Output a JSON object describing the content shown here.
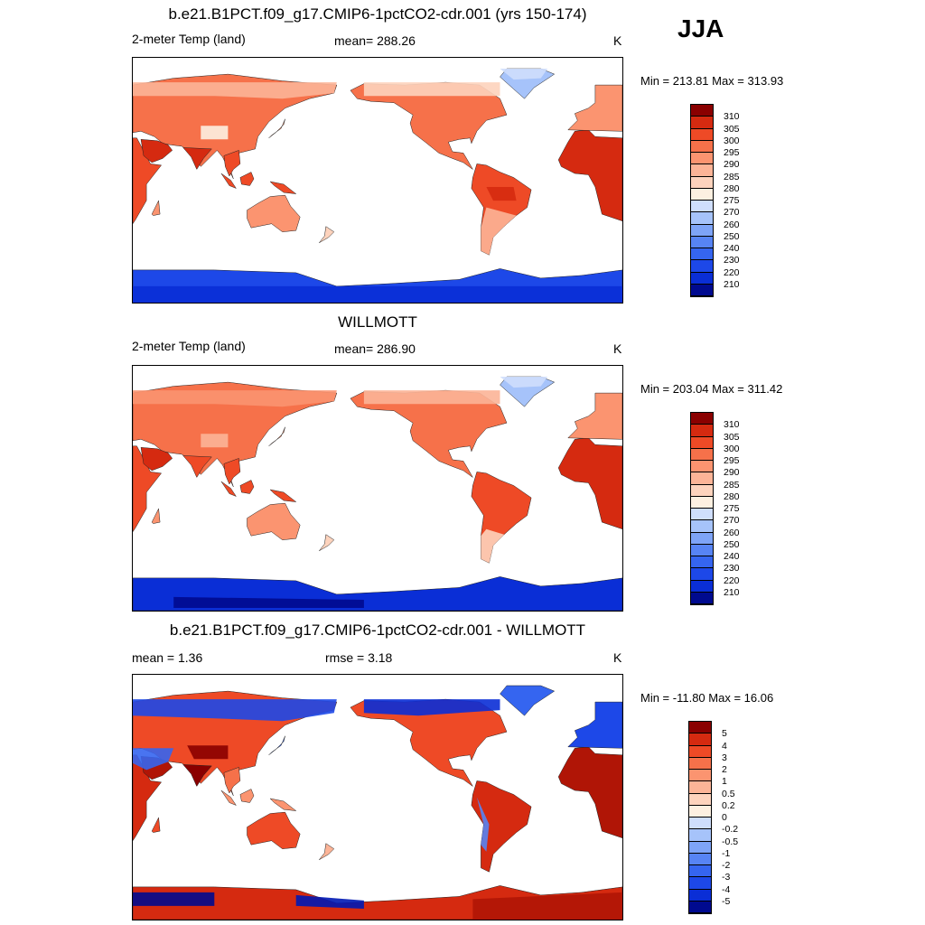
{
  "season": "JJA",
  "color_palettes": {
    "temperature": [
      "#000a8f",
      "#0018b4",
      "#0a2ed6",
      "#1d48e8",
      "#3565f0",
      "#5784f4",
      "#7ea4f7",
      "#a6c3fa",
      "#cfdefc",
      "#fdf0e1",
      "#fdd3bd",
      "#fcb497",
      "#fb9470",
      "#f6714a",
      "#ee4a26",
      "#d52a10",
      "#b01506",
      "#8a0000"
    ],
    "difference": [
      "#000a8f",
      "#0018b4",
      "#0a2ed6",
      "#1d48e8",
      "#3565f0",
      "#5784f4",
      "#7ea4f7",
      "#a6c3fa",
      "#cfdefc",
      "#fdf0e1",
      "#fdd3bd",
      "#fcb497",
      "#fb9470",
      "#f6714a",
      "#ee4a26",
      "#d52a10",
      "#b01506",
      "#8a0000"
    ]
  },
  "panels": [
    {
      "title": "b.e21.B1PCT.f09_g17.CMIP6-1pctCO2-cdr.001 (yrs 150-174)",
      "left_label": "2-meter Temp (land)",
      "center_label": "mean= 288.26",
      "units": "K",
      "range_text": "Min = 213.81 Max = 313.93",
      "colorbar_ticks": [
        "310",
        "305",
        "300",
        "295",
        "290",
        "285",
        "280",
        "275",
        "270",
        "260",
        "250",
        "240",
        "230",
        "220",
        "210"
      ]
    },
    {
      "title": "WILLMOTT",
      "left_label": "2-meter Temp (land)",
      "center_label": "mean= 286.90",
      "units": "K",
      "range_text": "Min = 203.04 Max = 311.42",
      "colorbar_ticks": [
        "310",
        "305",
        "300",
        "295",
        "290",
        "285",
        "280",
        "275",
        "270",
        "260",
        "250",
        "240",
        "230",
        "220",
        "210"
      ]
    },
    {
      "title": "b.e21.B1PCT.f09_g17.CMIP6-1pctCO2-cdr.001 - WILLMOTT",
      "left_label": "mean =   1.36",
      "center_label": "rmse =   3.18",
      "units": "K",
      "range_text": "Min = -11.80 Max =  16.06",
      "colorbar_ticks": [
        "5",
        "4",
        "3",
        "2",
        "1",
        "0.5",
        "0.2",
        "0",
        "-0.2",
        "-0.5",
        "-1",
        "-2",
        "-3",
        "-4",
        "-5"
      ]
    }
  ],
  "chart_data": [
    {
      "type": "heatmap",
      "title": "b.e21.B1PCT.f09_g17.CMIP6-1pctCO2-cdr.001 (yrs 150-174)",
      "variable": "2-meter Temp (land)",
      "units": "K",
      "mean": 288.26,
      "min": 213.81,
      "max": 313.93,
      "levels": [
        210,
        220,
        230,
        240,
        250,
        260,
        270,
        275,
        280,
        285,
        290,
        295,
        300,
        305,
        310
      ]
    },
    {
      "type": "heatmap",
      "title": "WILLMOTT",
      "variable": "2-meter Temp (land)",
      "units": "K",
      "mean": 286.9,
      "min": 203.04,
      "max": 311.42,
      "levels": [
        210,
        220,
        230,
        240,
        250,
        260,
        270,
        275,
        280,
        285,
        290,
        295,
        300,
        305,
        310
      ]
    },
    {
      "type": "heatmap",
      "title": "b.e21.B1PCT.f09_g17.CMIP6-1pctCO2-cdr.001 - WILLMOTT",
      "units": "K",
      "mean": 1.36,
      "rmse": 3.18,
      "min": -11.8,
      "max": 16.06,
      "levels": [
        -5,
        -4,
        -3,
        -2,
        -1,
        -0.5,
        -0.2,
        0,
        0.2,
        0.5,
        1,
        2,
        3,
        4,
        5
      ]
    }
  ]
}
